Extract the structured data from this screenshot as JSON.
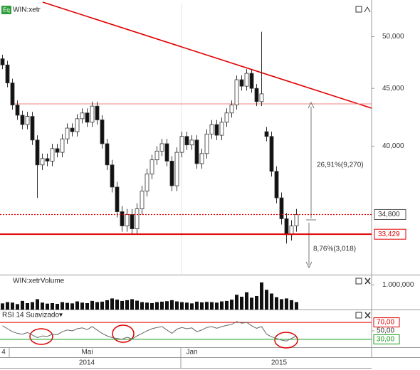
{
  "chart_data": [
    {
      "type": "candlestick",
      "title": "WIN:xetr",
      "badge": "Eq",
      "log_scale": true,
      "ylim": [
        30830,
        53490
      ],
      "yticks": [
        {
          "value": 40000,
          "label": "40,000"
        },
        {
          "value": 45000,
          "label": "45,000"
        },
        {
          "value": 50000,
          "label": "50,000"
        }
      ],
      "up_color": "#ffffff",
      "down_color": "#111111",
      "open": [
        47800,
        47200,
        45500,
        43500,
        42600,
        41800,
        42500,
        40500,
        38500,
        39000,
        38800,
        39800,
        39500,
        40600,
        41500,
        41200,
        42300,
        42800,
        42000,
        43400,
        42200,
        40200,
        38500,
        36800,
        35000,
        34000,
        34800,
        33800,
        35200,
        36500,
        37800,
        38900,
        39600,
        40200,
        38800,
        36900,
        39500,
        40800,
        40100,
        40500,
        38600,
        39400,
        41000,
        41800,
        40900,
        42000,
        42800,
        43500,
        45800,
        45200,
        46400,
        45000,
        43800,
        41200,
        40800,
        38000,
        36000,
        34500,
        33400,
        34000
      ],
      "high": [
        48200,
        47600,
        45900,
        43900,
        43000,
        42900,
        42900,
        40900,
        39400,
        39400,
        40200,
        40200,
        41000,
        41900,
        41900,
        42700,
        43200,
        43200,
        43800,
        43800,
        42600,
        40600,
        38900,
        37200,
        35400,
        35200,
        35200,
        35600,
        36900,
        38200,
        39300,
        40000,
        40600,
        40600,
        39200,
        39900,
        41200,
        41200,
        40900,
        40900,
        39800,
        41400,
        42200,
        42200,
        42400,
        43200,
        43900,
        46200,
        46200,
        46800,
        46800,
        45400,
        50500,
        41600,
        41200,
        38400,
        36400,
        34900,
        34400,
        35200
      ],
      "low": [
        46800,
        45100,
        43100,
        42200,
        41400,
        41400,
        40100,
        36000,
        38100,
        38400,
        38400,
        39100,
        39100,
        40200,
        40800,
        40800,
        41900,
        41600,
        41600,
        41800,
        39800,
        38100,
        36400,
        34600,
        33600,
        33600,
        33400,
        33400,
        34800,
        36100,
        37400,
        38500,
        39200,
        38400,
        36500,
        36500,
        39100,
        39700,
        39700,
        38200,
        38200,
        39000,
        40600,
        40500,
        40500,
        41600,
        42400,
        43100,
        44800,
        44800,
        44600,
        43400,
        43400,
        40400,
        37600,
        35600,
        34100,
        32800,
        33000,
        33600
      ],
      "close": [
        47200,
        45500,
        43500,
        42600,
        41800,
        42500,
        40500,
        38500,
        39000,
        38800,
        39800,
        39500,
        40600,
        41500,
        41200,
        42300,
        42800,
        42000,
        43400,
        42200,
        40200,
        38500,
        36800,
        35000,
        34000,
        34800,
        33800,
        35200,
        36500,
        37800,
        38900,
        39600,
        40200,
        38800,
        36900,
        39500,
        40800,
        40100,
        40500,
        38600,
        39400,
        41000,
        41800,
        40900,
        42000,
        42800,
        43500,
        45800,
        45200,
        46400,
        45000,
        43800,
        44500,
        40800,
        38000,
        36000,
        34500,
        33400,
        34000,
        34800
      ],
      "price_lines": [
        {
          "value": 34800,
          "label": "34,800"
        },
        {
          "value": 33429,
          "label": "33,429"
        }
      ],
      "price_line_color": "#e00000",
      "annotations": [
        "26,91%(9,270)",
        "8,76%(3,018)"
      ]
    },
    {
      "type": "bar",
      "title": "WIN:xetrVolume",
      "color": "#111111",
      "ylim": [
        0,
        1300000
      ],
      "yticks": [
        {
          "value": 1000000,
          "label": "1.000,000"
        }
      ],
      "values": [
        250000,
        300000,
        280000,
        220000,
        350000,
        260000,
        300000,
        420000,
        280000,
        240000,
        260000,
        230000,
        300000,
        270000,
        250000,
        330000,
        280000,
        260000,
        350000,
        300000,
        320000,
        380000,
        450000,
        400000,
        350000,
        380000,
        420000,
        360000,
        300000,
        280000,
        260000,
        300000,
        320000,
        340000,
        380000,
        330000,
        300000,
        280000,
        250000,
        320000,
        290000,
        310000,
        300000,
        280000,
        330000,
        350000,
        400000,
        600000,
        520000,
        700000,
        480000,
        550000,
        1100000,
        800000,
        650000,
        500000,
        420000,
        450000,
        380000,
        300000
      ]
    },
    {
      "type": "line",
      "title": "RSI 14 Suavizado▾",
      "color": "#666666",
      "ylim": [
        13,
        97
      ],
      "yticks": [
        {
          "value": 70,
          "label": "70,00"
        },
        {
          "value": 50,
          "label": "50,00"
        },
        {
          "value": 30,
          "label": "30,00"
        }
      ],
      "upper_color": "#e00000",
      "lower_color": "#1a9a1a",
      "values": [
        62,
        55,
        48,
        44,
        42,
        46,
        40,
        34,
        38,
        37,
        42,
        41,
        48,
        52,
        50,
        55,
        57,
        53,
        60,
        52,
        44,
        38,
        34,
        32,
        30,
        35,
        31,
        38,
        44,
        50,
        55,
        58,
        60,
        52,
        44,
        54,
        58,
        55,
        57,
        48,
        52,
        58,
        60,
        56,
        60,
        63,
        65,
        72,
        68,
        70,
        62,
        56,
        60,
        42,
        36,
        32,
        28,
        26,
        32,
        38
      ],
      "categories": [
        "4",
        null,
        null,
        null,
        null,
        null,
        null,
        null,
        null,
        null,
        null,
        null,
        null,
        null,
        null,
        null,
        null,
        "Mai",
        null,
        null,
        null,
        null,
        null,
        null,
        null,
        null,
        null,
        null,
        null,
        null,
        null,
        null,
        null,
        null,
        null,
        null,
        null,
        null,
        "Jan",
        null,
        null,
        null,
        null,
        null,
        null,
        null,
        null,
        null,
        null,
        null,
        null,
        null,
        null,
        null,
        null,
        null,
        null,
        null,
        null,
        null
      ],
      "years": [
        "2014",
        "2015"
      ]
    }
  ]
}
